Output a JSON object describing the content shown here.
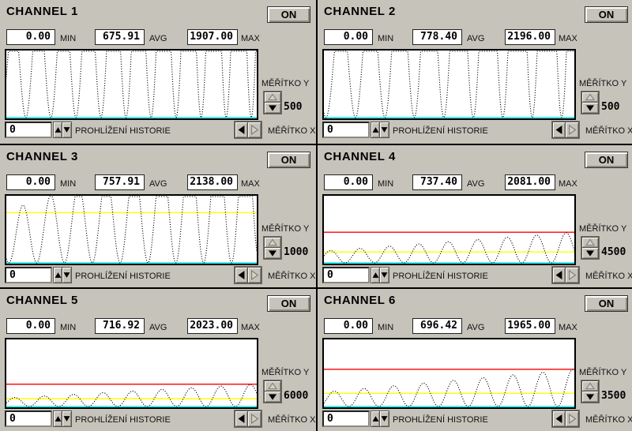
{
  "labels": {
    "min": "MIN",
    "avg": "AVG",
    "max": "MAX",
    "on": "ON",
    "scale_y": "MĚŘÍTKO Y",
    "scale_x": "MĚŘÍTKO X",
    "history": "PROHLÍŽENÍ HISTORIE"
  },
  "colors": {
    "min_line": "#00e8e8",
    "avg_line": "#ffff00",
    "max_line": "#ff0000",
    "trace": "#000000",
    "plot_bg": "#ffffff"
  },
  "channels": [
    {
      "title": "CHANNEL 1",
      "min": "0.00",
      "avg": "675.91",
      "max": "1907.00",
      "scale_y": "500",
      "history": "0",
      "wave": {
        "type": "raised-cosine-humps",
        "amp_start": 750,
        "amp_end": 1907,
        "cycles": 10.0,
        "phase": 0.22,
        "ylim": [
          0,
          500
        ]
      }
    },
    {
      "title": "CHANNEL 2",
      "min": "0.00",
      "avg": "778.40",
      "max": "2196.00",
      "scale_y": "500",
      "history": "0",
      "wave": {
        "type": "raised-cosine-humps",
        "amp_start": 750,
        "amp_end": 2196,
        "cycles": 8.5,
        "phase": 0.93,
        "ylim": [
          0,
          500
        ]
      }
    },
    {
      "title": "CHANNEL 3",
      "min": "0.00",
      "avg": "757.91",
      "max": "2138.00",
      "scale_y": "1000",
      "history": "0",
      "wave": {
        "type": "raised-cosine-humps",
        "amp_start": 780,
        "amp_end": 2138,
        "cycles": 9.0,
        "phase": 0.91,
        "ylim": [
          0,
          1000
        ]
      }
    },
    {
      "title": "CHANNEL 4",
      "min": "0.00",
      "avg": "737.40",
      "max": "2081.00",
      "scale_y": "4500",
      "history": "0",
      "wave": {
        "type": "raised-cosine-humps",
        "amp_start": 800,
        "amp_end": 2081,
        "cycles": 8.5,
        "phase": 0.28,
        "ylim": [
          0,
          4500
        ]
      }
    },
    {
      "title": "CHANNEL 5",
      "min": "0.00",
      "avg": "716.92",
      "max": "2023.00",
      "scale_y": "6000",
      "history": "0",
      "wave": {
        "type": "raised-cosine-humps",
        "amp_start": 770,
        "amp_end": 2023,
        "cycles": 8.5,
        "phase": 0.22,
        "ylim": [
          0,
          6000
        ]
      }
    },
    {
      "title": "CHANNEL 6",
      "min": "0.00",
      "avg": "696.42",
      "max": "1965.00",
      "scale_y": "3500",
      "history": "0",
      "wave": {
        "type": "raised-cosine-humps",
        "amp_start": 760,
        "amp_end": 1965,
        "cycles": 8.4,
        "phase": 0.16,
        "ylim": [
          0,
          3500
        ]
      }
    }
  ]
}
